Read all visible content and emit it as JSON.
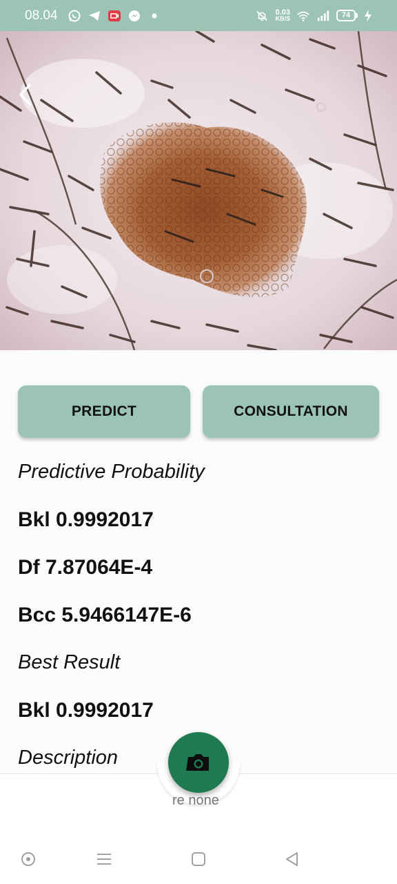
{
  "status_bar": {
    "time": "08.04",
    "net_speed_value": "0.03",
    "net_speed_unit": "KB/S",
    "battery": "74",
    "icons": [
      "whatsapp-icon",
      "telegram-icon",
      "recorder-icon",
      "messenger-icon",
      "dot-icon",
      "mute-icon",
      "wifi-icon",
      "signal-icon",
      "battery-icon",
      "charging-icon"
    ]
  },
  "colors": {
    "accent": "#9cc4b4",
    "fab": "#1e7a51",
    "text": "#111111"
  },
  "actions": {
    "predict": "PREDICT",
    "consultation": "CONSULTATION"
  },
  "results": {
    "probability_label": "Predictive Probability",
    "prob_1": "Bkl 0.9992017",
    "prob_2": "Df 7.87064E-4",
    "prob_3": "Bcc 5.9466147E-6",
    "best_label": "Best Result",
    "best_value": "Bkl 0.9992017",
    "description_label": "Description",
    "description_peek": "re none"
  },
  "nav": {
    "icons": [
      "assistant-icon",
      "menu-icon",
      "home-square-icon",
      "back-triangle-icon"
    ]
  }
}
